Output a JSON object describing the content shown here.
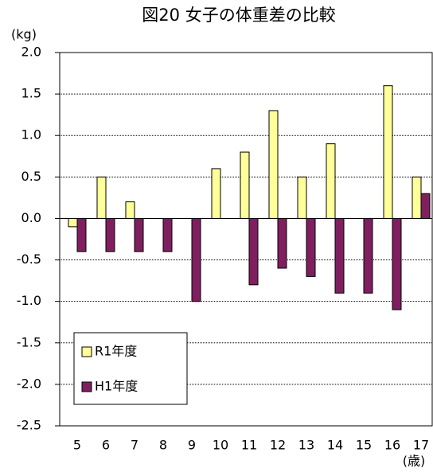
{
  "chart_data": {
    "type": "bar",
    "title": "図20 女子の体重差の比較",
    "y_unit": "(kg)",
    "x_unit": "(歳)",
    "categories": [
      "5",
      "6",
      "7",
      "8",
      "9",
      "10",
      "11",
      "12",
      "13",
      "14",
      "15",
      "16",
      "17"
    ],
    "series": [
      {
        "name": "R1年度",
        "color": "#ffff99",
        "values": [
          -0.1,
          0.5,
          0.2,
          0,
          0,
          0.6,
          0.8,
          1.3,
          0.5,
          0.9,
          0,
          1.6,
          0.5
        ]
      },
      {
        "name": "H1年度",
        "color": "#7f1f5f",
        "values": [
          -0.4,
          -0.4,
          -0.4,
          -0.4,
          -1.0,
          0,
          -0.8,
          -0.6,
          -0.7,
          -0.9,
          -0.9,
          -1.1,
          0.3
        ]
      }
    ],
    "ylim": [
      -2.5,
      2.0
    ],
    "yticks": [
      {
        "value": 2.0,
        "label": "2.0"
      },
      1.5,
      {
        "value": 1.0,
        "label": "1.0"
      },
      0.5,
      {
        "value": 0.0,
        "label": "0.0"
      },
      -0.5,
      {
        "value": -1.0,
        "label": "-1.0"
      },
      -1.5,
      {
        "value": -2.0,
        "label": "-2.0"
      },
      -2.5
    ],
    "grid": true,
    "legend": "lower left"
  }
}
